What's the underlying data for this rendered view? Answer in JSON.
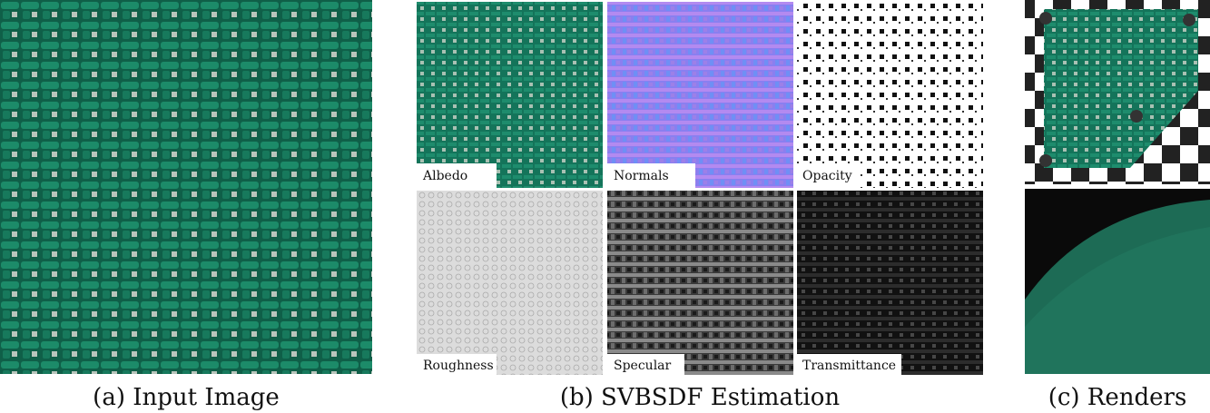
{
  "captions": [
    "(a) Input Image",
    "(b) SVBSDF Estimation",
    "(c) Renders"
  ],
  "maps": [
    "Albedo",
    "Normals",
    "Opacity",
    "Roughness",
    "Specular",
    "Transmittance"
  ]
}
